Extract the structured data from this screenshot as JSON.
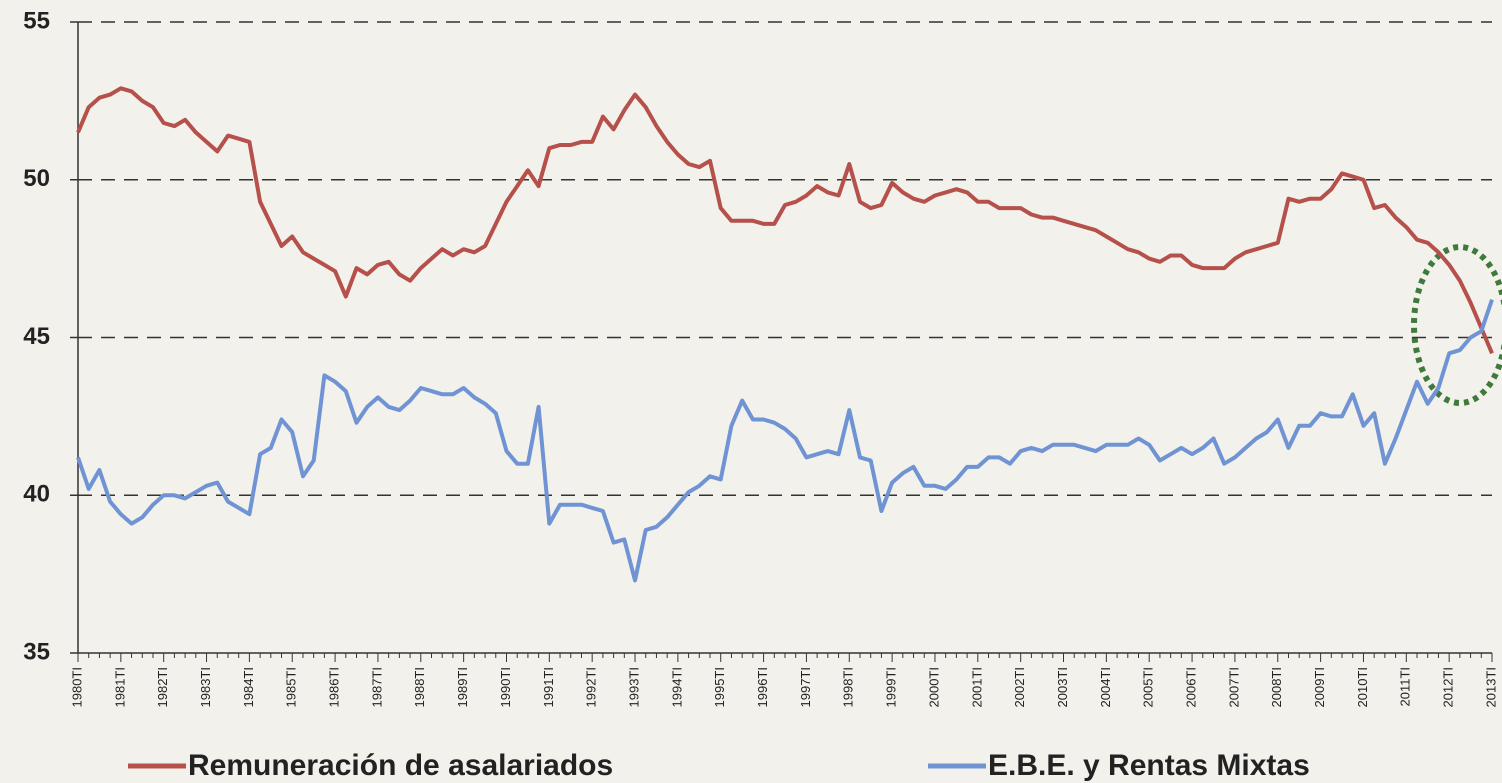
{
  "chart_data": {
    "type": "line",
    "categories": [
      "1980TI",
      null,
      null,
      null,
      "1981TI",
      null,
      null,
      null,
      "1982TI",
      null,
      null,
      null,
      "1983TI",
      null,
      null,
      null,
      "1984TI",
      null,
      null,
      null,
      "1985TI",
      null,
      null,
      null,
      "1986TI",
      null,
      null,
      null,
      "1987TI",
      null,
      null,
      null,
      "1988TI",
      null,
      null,
      null,
      "1989TI",
      null,
      null,
      null,
      "1990TI",
      null,
      null,
      null,
      "1991TI",
      null,
      null,
      null,
      "1992TI",
      null,
      null,
      null,
      "1993TI",
      null,
      null,
      null,
      "1994TI",
      null,
      null,
      null,
      "1995TI",
      null,
      null,
      null,
      "1996TI",
      null,
      null,
      null,
      "1997TI",
      null,
      null,
      null,
      "1998TI",
      null,
      null,
      null,
      "1999TI",
      null,
      null,
      null,
      "2000TI",
      null,
      null,
      null,
      "2001TI",
      null,
      null,
      null,
      "2002TI",
      null,
      null,
      null,
      "2003TI",
      null,
      null,
      null,
      "2004TI",
      null,
      null,
      null,
      "2005TI",
      null,
      null,
      null,
      "2006TI",
      null,
      null,
      null,
      "2007TI",
      null,
      null,
      null,
      "2008TI",
      null,
      null,
      null,
      "2009TI",
      null,
      null,
      null,
      "2010TI",
      null,
      null,
      null,
      "2011TI",
      null,
      null,
      null,
      "2012TI",
      null,
      null,
      null,
      "2013TI"
    ],
    "series": [
      {
        "name": "Remuneración de asalariados",
        "color": "#b5504b",
        "values": [
          51.5,
          52.3,
          52.6,
          52.7,
          52.9,
          52.8,
          52.5,
          52.3,
          51.8,
          51.7,
          51.9,
          51.5,
          51.2,
          50.9,
          51.4,
          51.3,
          51.2,
          49.3,
          48.6,
          47.9,
          48.2,
          47.7,
          47.5,
          47.3,
          47.1,
          46.3,
          47.2,
          47.0,
          47.3,
          47.4,
          47.0,
          46.8,
          47.2,
          47.5,
          47.8,
          47.6,
          47.8,
          47.7,
          47.9,
          48.6,
          49.3,
          49.8,
          50.3,
          49.8,
          51.0,
          51.1,
          51.1,
          51.2,
          51.2,
          52.0,
          51.6,
          52.2,
          52.7,
          52.3,
          51.7,
          51.2,
          50.8,
          50.5,
          50.4,
          50.6,
          49.1,
          48.7,
          48.7,
          48.7,
          48.6,
          48.6,
          49.2,
          49.3,
          49.5,
          49.8,
          49.6,
          49.5,
          50.5,
          49.3,
          49.1,
          49.2,
          49.9,
          49.6,
          49.4,
          49.3,
          49.5,
          49.6,
          49.7,
          49.6,
          49.3,
          49.3,
          49.1,
          49.1,
          49.1,
          48.9,
          48.8,
          48.8,
          48.7,
          48.6,
          48.5,
          48.4,
          48.2,
          48.0,
          47.8,
          47.7,
          47.5,
          47.4,
          47.6,
          47.6,
          47.3,
          47.2,
          47.2,
          47.2,
          47.5,
          47.7,
          47.8,
          47.9,
          48.0,
          49.4,
          49.3,
          49.4,
          49.4,
          49.7,
          50.2,
          50.1,
          50.0,
          49.1,
          49.2,
          48.8,
          48.5,
          48.1,
          48.0,
          47.7,
          47.3,
          46.8,
          46.1,
          45.3,
          44.5
        ]
      },
      {
        "name": "E.B.E. y Rentas Mixtas",
        "color": "#6f93d3",
        "values": [
          41.2,
          40.2,
          40.8,
          39.8,
          39.4,
          39.1,
          39.3,
          39.7,
          40.0,
          40.0,
          39.9,
          40.1,
          40.3,
          40.4,
          39.8,
          39.6,
          39.4,
          41.3,
          41.5,
          42.4,
          42.0,
          40.6,
          41.1,
          43.8,
          43.6,
          43.3,
          42.3,
          42.8,
          43.1,
          42.8,
          42.7,
          43.0,
          43.4,
          43.3,
          43.2,
          43.2,
          43.4,
          43.1,
          42.9,
          42.6,
          41.4,
          41.0,
          41.0,
          42.8,
          39.1,
          39.7,
          39.7,
          39.7,
          39.6,
          39.5,
          38.5,
          38.6,
          37.3,
          38.9,
          39.0,
          39.3,
          39.7,
          40.1,
          40.3,
          40.6,
          40.5,
          42.2,
          43.0,
          42.4,
          42.4,
          42.3,
          42.1,
          41.8,
          41.2,
          41.3,
          41.4,
          41.3,
          42.7,
          41.2,
          41.1,
          39.5,
          40.4,
          40.7,
          40.9,
          40.3,
          40.3,
          40.2,
          40.5,
          40.9,
          40.9,
          41.2,
          41.2,
          41.0,
          41.4,
          41.5,
          41.4,
          41.6,
          41.6,
          41.6,
          41.5,
          41.4,
          41.6,
          41.6,
          41.6,
          41.8,
          41.6,
          41.1,
          41.3,
          41.5,
          41.3,
          41.5,
          41.8,
          41.0,
          41.2,
          41.5,
          41.8,
          42.0,
          42.4,
          41.5,
          42.2,
          42.2,
          42.6,
          42.5,
          42.5,
          43.2,
          42.2,
          42.6,
          41.0,
          41.8,
          42.7,
          43.6,
          42.9,
          43.4,
          44.5,
          44.6,
          45.0,
          45.2,
          46.2
        ]
      }
    ],
    "ylim": [
      35,
      55
    ],
    "yticks": [
      35,
      40,
      45,
      50,
      55
    ],
    "grid": true
  }
}
